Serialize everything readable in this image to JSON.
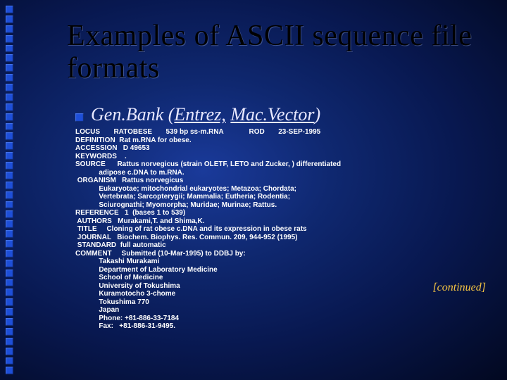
{
  "title": "Examples of ASCII sequence file formats",
  "subtitle": {
    "prefix": "Gen.Bank ",
    "paren_open": "(",
    "link1": "Entrez,",
    "space": " ",
    "link2": "Mac.Vector",
    "paren_close": ")"
  },
  "record_lines": [
    "LOCUS       RATOBESE       539 bp ss-m.RNA             ROD       23-SEP-1995",
    "DEFINITION  Rat m.RNA for obese.",
    "ACCESSION   D 49653",
    "KEYWORDS    .",
    "SOURCE      Rattus norvegicus (strain OLETF, LETO and Zucker, ) differentiated",
    "            adipose c.DNA to m.RNA.",
    " ORGANISM   Rattus norvegicus",
    "            Eukaryotae; mitochondrial eukaryotes; Metazoa; Chordata;",
    "            Vertebrata; Sarcopterygii; Mammalia; Eutheria; Rodentia;",
    "            Sciurognathi; Myomorpha; Muridae; Murinae; Rattus.",
    "REFERENCE   1  (bases 1 to 539)",
    " AUTHORS   Murakami,T. and Shima,K.",
    " TITLE     Cloning of rat obese c.DNA and its expression in obese rats",
    " JOURNAL   Biochem. Biophys. Res. Commun. 209, 944-952 (1995)",
    " STANDARD  full automatic",
    "COMMENT     Submitted (10-Mar-1995) to DDBJ by:",
    "            Takashi Murakami",
    "            Department of Laboratory Medicine",
    "            School of Medicine",
    "            University of Tokushima",
    "            Kuramotocho 3-chome",
    "            Tokushima 770",
    "            Japan",
    "            Phone: +81-886-33-7184",
    "            Fax:   +81-886-31-9495."
  ],
  "continued_label": "[continued]",
  "colors": {
    "bullet": "#1e4fd8",
    "title": "#000000",
    "subtitle": "#e8e8ff",
    "record_text": "#ffffff",
    "continued": "#f5c542",
    "bg_center": "#1a3a9a",
    "bg_edge": "#020820"
  },
  "typography": {
    "title_fontsize": 42,
    "subtitle_fontsize": 26,
    "record_fontsize": 10,
    "continued_fontsize": 16,
    "title_family": "Times New Roman",
    "record_family": "Arial"
  },
  "left_bullet_count": 38
}
